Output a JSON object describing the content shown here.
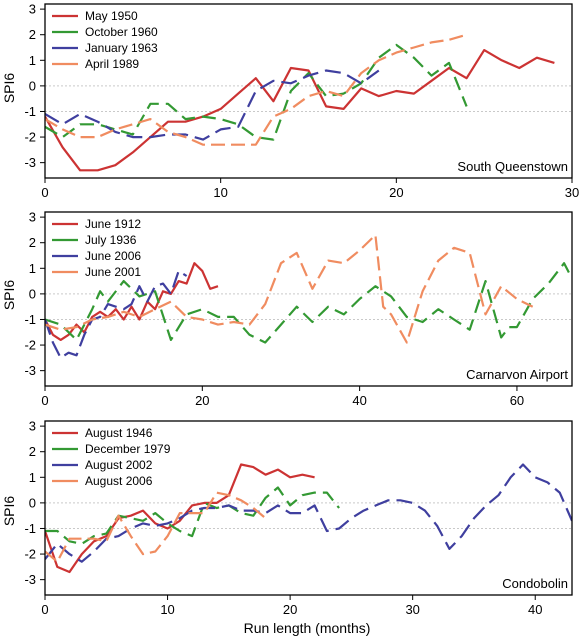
{
  "figure": {
    "x_axis_title": "Run length (months)",
    "y_axis_title": "SPI6"
  },
  "chart_data": [
    {
      "type": "line",
      "station": "South Queenstown",
      "xlabel": "",
      "ylabel": "SPI6",
      "xlim": [
        0,
        30
      ],
      "ylim": [
        -3.6,
        3.2
      ],
      "xticks": [
        0,
        10,
        20,
        30
      ],
      "yticks": [
        -3,
        -2,
        -1,
        0,
        1,
        2,
        3
      ],
      "reference_lines": [
        0,
        -1
      ],
      "legend_position": "top-left",
      "series": [
        {
          "name": "May 1950",
          "color": "#cc3333",
          "x": [
            0,
            1,
            2,
            3,
            4,
            5,
            6,
            7,
            8,
            9,
            10,
            11,
            12,
            13,
            14,
            15,
            16,
            17,
            18,
            19,
            20,
            21,
            22,
            23,
            24,
            25,
            26,
            27,
            28,
            29
          ],
          "y": [
            -1.2,
            -2.4,
            -3.3,
            -3.3,
            -3.1,
            -2.6,
            -2.0,
            -1.4,
            -1.4,
            -1.2,
            -0.9,
            -0.3,
            0.3,
            -0.6,
            0.7,
            0.6,
            -0.8,
            -0.9,
            -0.1,
            -0.4,
            -0.2,
            -0.3,
            0.2,
            0.7,
            0.3,
            1.4,
            1.0,
            0.7,
            1.1,
            0.9
          ]
        },
        {
          "name": "October 1960",
          "color": "#339933",
          "x": [
            0,
            1,
            2,
            3,
            4,
            5,
            6,
            7,
            8,
            9,
            10,
            11,
            12,
            13,
            14,
            15,
            16,
            17,
            18,
            19,
            20,
            21,
            22,
            23,
            24
          ],
          "y": [
            -1.6,
            -2.0,
            -1.5,
            -1.5,
            -1.7,
            -1.9,
            -0.7,
            -0.7,
            -1.3,
            -1.2,
            -1.3,
            -1.5,
            -2.0,
            -2.1,
            -0.2,
            0.5,
            -0.4,
            -0.3,
            0.1,
            1.1,
            1.6,
            1.1,
            0.4,
            0.9,
            -0.8
          ]
        },
        {
          "name": "January 1963",
          "color": "#3f3f9f",
          "x": [
            0,
            1,
            2,
            3,
            4,
            5,
            6,
            7,
            8,
            9,
            10,
            11,
            12,
            13,
            14,
            15,
            16,
            17,
            18,
            19
          ],
          "y": [
            -1.1,
            -1.5,
            -1.1,
            -1.4,
            -1.8,
            -2.0,
            -2.0,
            -1.9,
            -1.9,
            -2.1,
            -1.7,
            -1.6,
            -0.2,
            0.2,
            0.1,
            0.4,
            0.6,
            0.5,
            0.1,
            0.6
          ]
        },
        {
          "name": "April 1989",
          "color": "#f08c60",
          "x": [
            0,
            1,
            2,
            3,
            4,
            5,
            6,
            7,
            8,
            9,
            10,
            11,
            12,
            13,
            14,
            15,
            16,
            17,
            18,
            19,
            20,
            21,
            22,
            23,
            24
          ],
          "y": [
            -1.3,
            -1.7,
            -2.0,
            -2.0,
            -1.7,
            -1.5,
            -1.3,
            -1.8,
            -2.0,
            -2.3,
            -2.3,
            -2.3,
            -2.3,
            -1.2,
            -0.9,
            -0.4,
            -0.2,
            -0.4,
            0.5,
            1.0,
            1.3,
            1.5,
            1.7,
            1.8,
            2.0
          ]
        }
      ]
    },
    {
      "type": "line",
      "station": "Carnarvon Airport",
      "xlabel": "",
      "ylabel": "SPI6",
      "xlim": [
        0,
        67
      ],
      "ylim": [
        -3.6,
        3.2
      ],
      "xticks": [
        0,
        20,
        40,
        60
      ],
      "yticks": [
        -3,
        -2,
        -1,
        0,
        1,
        2,
        3
      ],
      "reference_lines": [
        0,
        -1
      ],
      "legend_position": "top-left",
      "series": [
        {
          "name": "June 1912",
          "color": "#cc3333",
          "x": [
            0,
            1,
            2,
            3,
            4,
            5,
            6,
            7,
            8,
            9,
            10,
            11,
            12,
            13,
            14,
            15,
            16,
            17,
            18,
            19,
            20,
            21,
            22
          ],
          "y": [
            -1.0,
            -1.6,
            -1.8,
            -1.6,
            -1.2,
            -1.5,
            -0.9,
            -0.7,
            -0.9,
            -0.6,
            -1.0,
            -0.5,
            -1.0,
            -0.3,
            -0.6,
            0.1,
            0.0,
            0.5,
            0.4,
            1.2,
            0.9,
            0.2,
            0.3
          ]
        },
        {
          "name": "July 1936",
          "color": "#339933",
          "x": [
            0,
            2,
            4,
            6,
            7,
            8,
            10,
            12,
            14,
            16,
            18,
            20,
            22,
            24,
            26,
            28,
            30,
            32,
            34,
            36,
            38,
            40,
            42,
            44,
            46,
            48,
            50,
            52,
            54,
            56,
            58,
            59,
            60,
            62,
            64,
            66,
            67
          ],
          "y": [
            -1.0,
            -1.2,
            -1.8,
            -0.6,
            0.1,
            -0.3,
            0.5,
            -0.1,
            0.1,
            -1.8,
            -0.8,
            -0.6,
            -0.9,
            -0.9,
            -1.6,
            -1.9,
            -1.2,
            -0.5,
            -1.1,
            -0.5,
            -0.8,
            -0.2,
            0.3,
            -0.1,
            -0.9,
            -1.1,
            -0.6,
            -1.0,
            -1.4,
            0.5,
            -1.7,
            -1.3,
            -1.3,
            -0.2,
            0.4,
            1.2,
            0.6
          ]
        },
        {
          "name": "June 2006",
          "color": "#3f3f9f",
          "x": [
            0,
            1,
            2,
            3,
            4,
            5,
            6,
            7,
            8,
            9,
            10,
            11,
            12,
            13,
            14,
            15,
            16,
            17,
            18
          ],
          "y": [
            -1.0,
            -1.9,
            -2.5,
            -2.3,
            -2.4,
            -1.6,
            -1.0,
            -0.9,
            -0.4,
            -0.5,
            -0.6,
            -0.4,
            0.3,
            -0.3,
            0.3,
            0.4,
            0.0,
            0.9,
            0.7
          ]
        },
        {
          "name": "June 2001",
          "color": "#f08c60",
          "x": [
            0,
            2,
            4,
            6,
            8,
            10,
            12,
            14,
            16,
            18,
            20,
            22,
            24,
            26,
            28,
            30,
            32,
            34,
            36,
            38,
            40,
            42,
            43,
            44,
            46,
            48,
            50,
            52,
            54,
            56,
            58,
            60,
            62
          ],
          "y": [
            -1.2,
            -1.4,
            -1.3,
            -1.0,
            -0.9,
            -0.7,
            -0.9,
            -0.6,
            -0.3,
            -0.9,
            -1.0,
            -1.2,
            -1.1,
            -1.2,
            -0.4,
            1.2,
            1.6,
            0.2,
            1.3,
            1.2,
            1.7,
            2.3,
            -0.5,
            -0.8,
            -1.9,
            0.1,
            1.3,
            1.8,
            1.6,
            -0.8,
            0.3,
            -0.2,
            -0.5
          ]
        }
      ]
    },
    {
      "type": "line",
      "station": "Condobolin",
      "xlabel": "Run length (months)",
      "ylabel": "SPI6",
      "xlim": [
        0,
        43
      ],
      "ylim": [
        -3.6,
        3.2
      ],
      "xticks": [
        0,
        10,
        20,
        30,
        40
      ],
      "yticks": [
        -3,
        -2,
        -1,
        0,
        1,
        2,
        3
      ],
      "reference_lines": [
        0,
        -1
      ],
      "legend_position": "top-left",
      "series": [
        {
          "name": "August 1946",
          "color": "#cc3333",
          "x": [
            0,
            1,
            2,
            3,
            4,
            5,
            6,
            7,
            8,
            9,
            10,
            11,
            12,
            13,
            14,
            15,
            16,
            17,
            18,
            19,
            20,
            21,
            22
          ],
          "y": [
            -1.1,
            -2.5,
            -2.7,
            -2.0,
            -1.5,
            -1.3,
            -0.6,
            -0.5,
            -0.3,
            -0.8,
            -1.0,
            -0.7,
            -0.1,
            0.0,
            0.0,
            0.3,
            1.5,
            1.4,
            1.1,
            1.3,
            1.0,
            1.1,
            1.0
          ]
        },
        {
          "name": "December 1979",
          "color": "#339933",
          "x": [
            0,
            1,
            2,
            3,
            4,
            5,
            6,
            7,
            8,
            9,
            10,
            11,
            12,
            13,
            14,
            15,
            16,
            17,
            18,
            19,
            20,
            21,
            22,
            23,
            24
          ],
          "y": [
            -1.1,
            -1.1,
            -1.5,
            -1.6,
            -1.3,
            -1.2,
            -0.5,
            -0.6,
            -0.7,
            -0.4,
            -0.8,
            -1.1,
            -1.3,
            0.0,
            -0.2,
            -0.1,
            -0.4,
            -0.5,
            0.2,
            0.6,
            -0.1,
            0.3,
            0.4,
            0.4,
            -0.2
          ]
        },
        {
          "name": "August 2002",
          "color": "#3f3f9f",
          "x": [
            0,
            1,
            2,
            3,
            4,
            5,
            6,
            7,
            8,
            9,
            10,
            11,
            12,
            13,
            14,
            15,
            16,
            17,
            18,
            19,
            20,
            21,
            22,
            23,
            24,
            25,
            26,
            27,
            28,
            29,
            30,
            31,
            32,
            33,
            34,
            35,
            36,
            37,
            38,
            39,
            40,
            41,
            42,
            43
          ],
          "y": [
            -2.2,
            -1.6,
            -2.0,
            -2.3,
            -1.9,
            -1.4,
            -1.3,
            -1.0,
            -0.8,
            -0.9,
            -0.8,
            -0.6,
            -0.3,
            -0.2,
            -0.2,
            -0.1,
            -0.3,
            -0.3,
            -0.4,
            -0.1,
            -0.4,
            -0.4,
            -0.1,
            -1.1,
            -1.0,
            -0.6,
            -0.3,
            -0.1,
            0.1,
            0.1,
            0.0,
            -0.3,
            -0.9,
            -1.8,
            -1.3,
            -0.6,
            -0.1,
            0.3,
            1.0,
            1.5,
            1.0,
            0.8,
            0.4,
            -0.7
          ]
        },
        {
          "name": "August 2006",
          "color": "#f08c60",
          "x": [
            0,
            1,
            2,
            3,
            4,
            5,
            6,
            7,
            8,
            9,
            10,
            11,
            12,
            13,
            14,
            15,
            16,
            17,
            18
          ],
          "y": [
            -1.9,
            -2.3,
            -1.4,
            -1.4,
            -1.4,
            -1.5,
            -0.5,
            -1.3,
            -2.0,
            -1.9,
            -1.3,
            -0.4,
            -0.4,
            -0.4,
            0.4,
            0.3,
            0.1,
            -0.2,
            -0.6
          ]
        }
      ]
    }
  ]
}
